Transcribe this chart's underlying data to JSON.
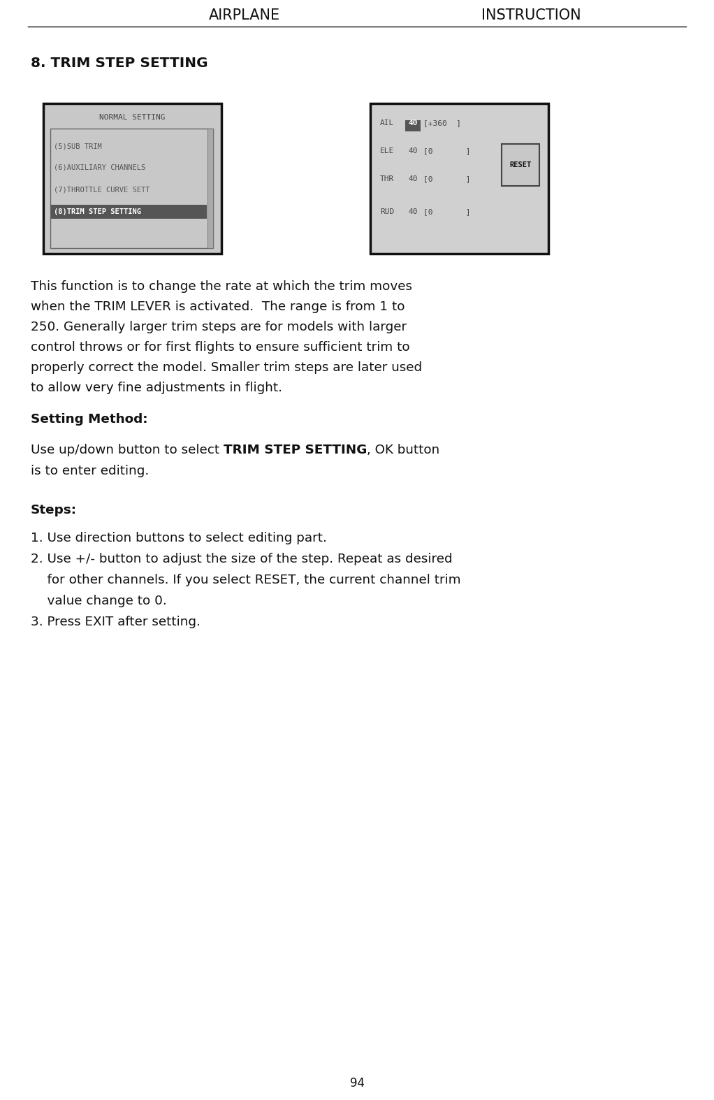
{
  "bg_color": "#ffffff",
  "header_left": "AIRPLANE",
  "header_right": "INSTRUCTION",
  "header_fontsize": 15,
  "section_title": "8. TRIM STEP SETTING",
  "section_title_fontsize": 14.5,
  "body_fontsize": 13.2,
  "label_fontsize": 13.2,
  "setting_method_label": "Setting Method:",
  "setting_method_text1": "Use up/down button to select ",
  "setting_method_bold": "TRIM STEP SETTING",
  "steps_label": "Steps:",
  "step1": "1. Use direction buttons to select editing part.",
  "step2_line1": "2. Use +/- button to adjust the size of the step. Repeat as desired",
  "step2_line2": "    for other channels. If you select RESET, the current channel trim",
  "step2_line3": "    value change to 0.",
  "step3": "3. Press EXIT after setting.",
  "description_lines": [
    "This function is to change the rate at which the trim moves",
    "when the TRIM LEVER is activated.  The range is from 1 to",
    "250. Generally larger trim steps are for models with larger",
    "control throws or for first flights to ensure sufficient trim to",
    "properly correct the model. Smaller trim steps are later used",
    "to allow very fine adjustments in flight."
  ],
  "page_number": "94",
  "screen1_title": "NORMAL SETTING",
  "screen1_items": [
    "(5)SUB TRIM",
    "(6)AUXILIARY CHANNELS",
    "(7)THROTTLE CURVE SETT",
    "(8)TRIM STEP SETTING"
  ],
  "screen2_labels": [
    "AIL",
    "ELE",
    "THR",
    "RUD"
  ],
  "screen2_vals": [
    "40",
    "40",
    "40",
    "40"
  ],
  "screen2_ranges": [
    "[+360  ]",
    "[0       ]",
    "[0       ]",
    "[0       ]"
  ],
  "screen1_bg": "#c8c8c8",
  "screen2_bg": "#d0d0d0",
  "screen_border": "#111111",
  "menu_box_border": "#666666",
  "highlight_bg": "#555555",
  "highlight_fg": "#ffffff",
  "normal_menu_fg": "#555555",
  "screen_text_fg": "#444444",
  "reset_bg": "#c8c8c8",
  "reset_border": "#444444"
}
